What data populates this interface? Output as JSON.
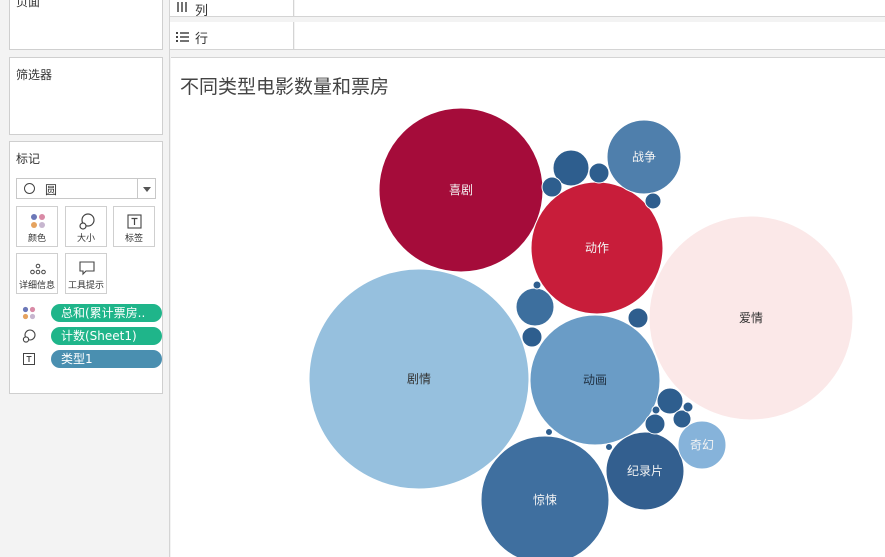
{
  "panels": {
    "pages": "页面",
    "filters": "筛选器",
    "marks": "标记"
  },
  "marks": {
    "mark_type": "圆",
    "buttons": {
      "color": "颜色",
      "size": "大小",
      "label": "标签",
      "detail": "详细信息",
      "tooltip": "工具提示"
    },
    "pills": [
      {
        "role": "color",
        "text": "总和(累计票房.."
      },
      {
        "role": "size",
        "text": "计数(Sheet1)"
      },
      {
        "role": "label",
        "text": "类型1"
      }
    ]
  },
  "shelves": {
    "columns": "列",
    "rows": "行"
  },
  "view": {
    "title": "不同类型电影数量和票房"
  },
  "chart_data": {
    "type": "packed-bubble",
    "title": "不同类型电影数量和票房",
    "size_measure": "计数(Sheet1)",
    "color_measure": "总和(累计票房..",
    "label_field": "类型1",
    "bubbles": [
      {
        "label": "喜剧",
        "color": "#a50c3a"
      },
      {
        "label": "动作",
        "color": "#c81d3a"
      },
      {
        "label": "战争",
        "color": "#4f7fac"
      },
      {
        "label": "爱情",
        "color": "#fbe8e8"
      },
      {
        "label": "剧情",
        "color": "#96c0de"
      },
      {
        "label": "动画",
        "color": "#6a9cc6"
      },
      {
        "label": "惊悚",
        "color": "#3f6f9f"
      },
      {
        "label": "纪录片",
        "color": "#335f8f"
      },
      {
        "label": "奇幻",
        "color": "#86b3da"
      },
      {
        "label": "",
        "color": "#2e5e8e"
      },
      {
        "label": "",
        "color": "#2e5e8e"
      },
      {
        "label": "",
        "color": "#2e5e8e"
      },
      {
        "label": "",
        "color": "#2e5e8e"
      },
      {
        "label": "",
        "color": "#3d6f9e"
      },
      {
        "label": "",
        "color": "#2e5e8e"
      },
      {
        "label": "",
        "color": "#2e5e8e"
      },
      {
        "label": "",
        "color": "#2e5e8e"
      },
      {
        "label": "",
        "color": "#2e5e8e"
      },
      {
        "label": "",
        "color": "#2e5e8e"
      },
      {
        "label": "",
        "color": "#2e5e8e"
      },
      {
        "label": "",
        "color": "#2e5e8e"
      },
      {
        "label": "",
        "color": "#2e5e8e"
      },
      {
        "label": "",
        "color": "#2e5e8e"
      },
      {
        "label": "",
        "color": "#2e5e8e"
      }
    ]
  }
}
